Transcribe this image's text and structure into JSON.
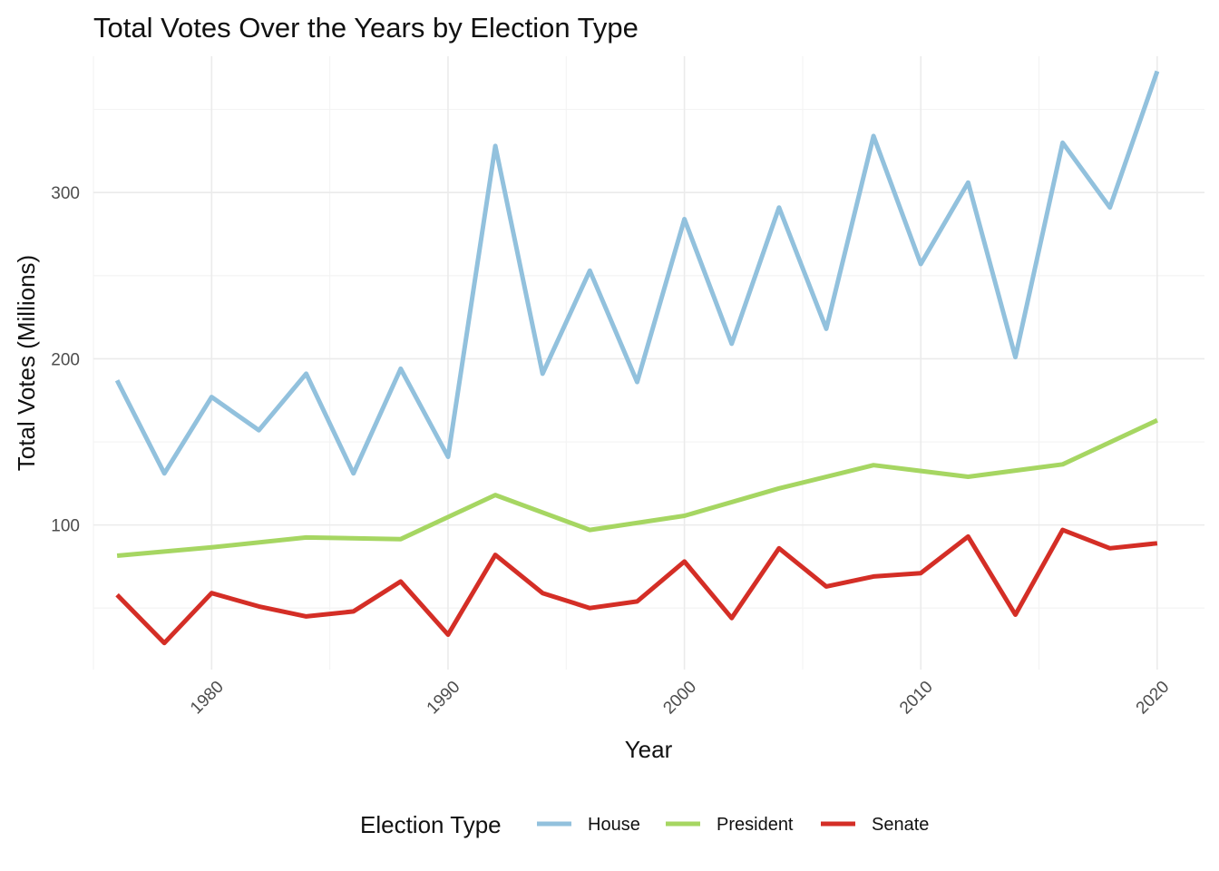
{
  "chart_data": {
    "type": "line",
    "title": "Total Votes Over the Years by Election Type",
    "xlabel": "Year",
    "ylabel": "Total Votes (Millions)",
    "xlim": [
      1975,
      2022
    ],
    "ylim": [
      13,
      382
    ],
    "x_ticks": [
      1980,
      1990,
      2000,
      2010,
      2020
    ],
    "y_ticks": [
      100,
      200,
      300
    ],
    "grid": true,
    "legend": {
      "title": "Election Type",
      "position": "bottom"
    },
    "series": [
      {
        "name": "House",
        "color": "#92c1dd",
        "x": [
          1976,
          1978,
          1980,
          1982,
          1984,
          1986,
          1988,
          1990,
          1992,
          1994,
          1996,
          1998,
          2000,
          2002,
          2004,
          2006,
          2008,
          2010,
          2012,
          2014,
          2016,
          2018,
          2020
        ],
        "y": [
          187,
          131,
          177,
          157,
          191,
          131,
          194,
          141,
          328,
          191,
          253,
          186,
          284,
          209,
          291,
          218,
          334,
          257,
          306,
          201,
          330,
          291,
          373
        ]
      },
      {
        "name": "President",
        "color": "#a6d662",
        "x": [
          1976,
          1980,
          1984,
          1988,
          1992,
          1996,
          2000,
          2004,
          2008,
          2012,
          2016,
          2020
        ],
        "y": [
          81.5,
          86.5,
          92.5,
          91.5,
          118,
          97,
          105.5,
          122,
          136,
          129,
          136.5,
          163
        ]
      },
      {
        "name": "Senate",
        "color": "#d42e26",
        "x": [
          1976,
          1978,
          1980,
          1982,
          1984,
          1986,
          1988,
          1990,
          1992,
          1994,
          1996,
          1998,
          2000,
          2002,
          2004,
          2006,
          2008,
          2010,
          2012,
          2014,
          2016,
          2018,
          2020
        ],
        "y": [
          58,
          29,
          59,
          51,
          45,
          48,
          66,
          34,
          82,
          59,
          50,
          54,
          78,
          44,
          86,
          63,
          69,
          71,
          93,
          46,
          97,
          86,
          89
        ]
      }
    ]
  }
}
